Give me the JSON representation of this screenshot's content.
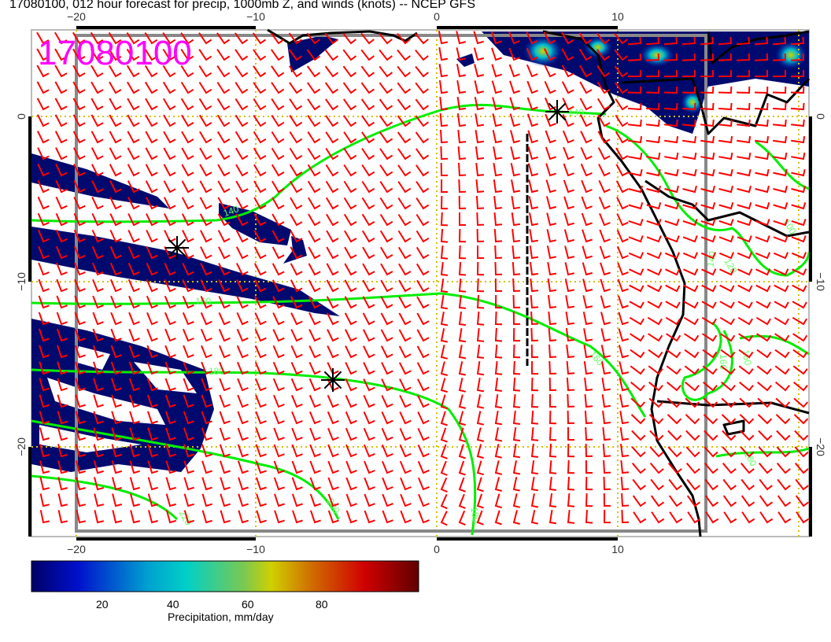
{
  "title": "17080100, 012 hour forecast for precip, 1000mb Z, and winds (knots) -- NCEP GFS",
  "stamp": "17080100",
  "axes": {
    "lon_ticks": [
      "−20",
      "−10",
      "0",
      "10"
    ],
    "lat_ticks": [
      "0",
      "−10",
      "−20"
    ]
  },
  "contour_labels": [
    "140",
    "160",
    "180",
    "200",
    "220",
    "180",
    "160",
    "140",
    "100",
    "120",
    "140",
    "160",
    "160",
    "180"
  ],
  "colorbar": {
    "label": "Precipitation, mm/day",
    "ticks": [
      "20",
      "40",
      "60",
      "80"
    ],
    "colors": [
      "#000066",
      "#0010cc",
      "#00a0d0",
      "#00d0c8",
      "#7cc850",
      "#d0d000",
      "#d07000",
      "#d00000",
      "#600000"
    ]
  },
  "colors": {
    "stamp": "#ff00ff",
    "wind_barbs": "#ff0000",
    "contours": "#00ee00",
    "precip_low": "#000a6e",
    "grid": "#d4c000"
  }
}
